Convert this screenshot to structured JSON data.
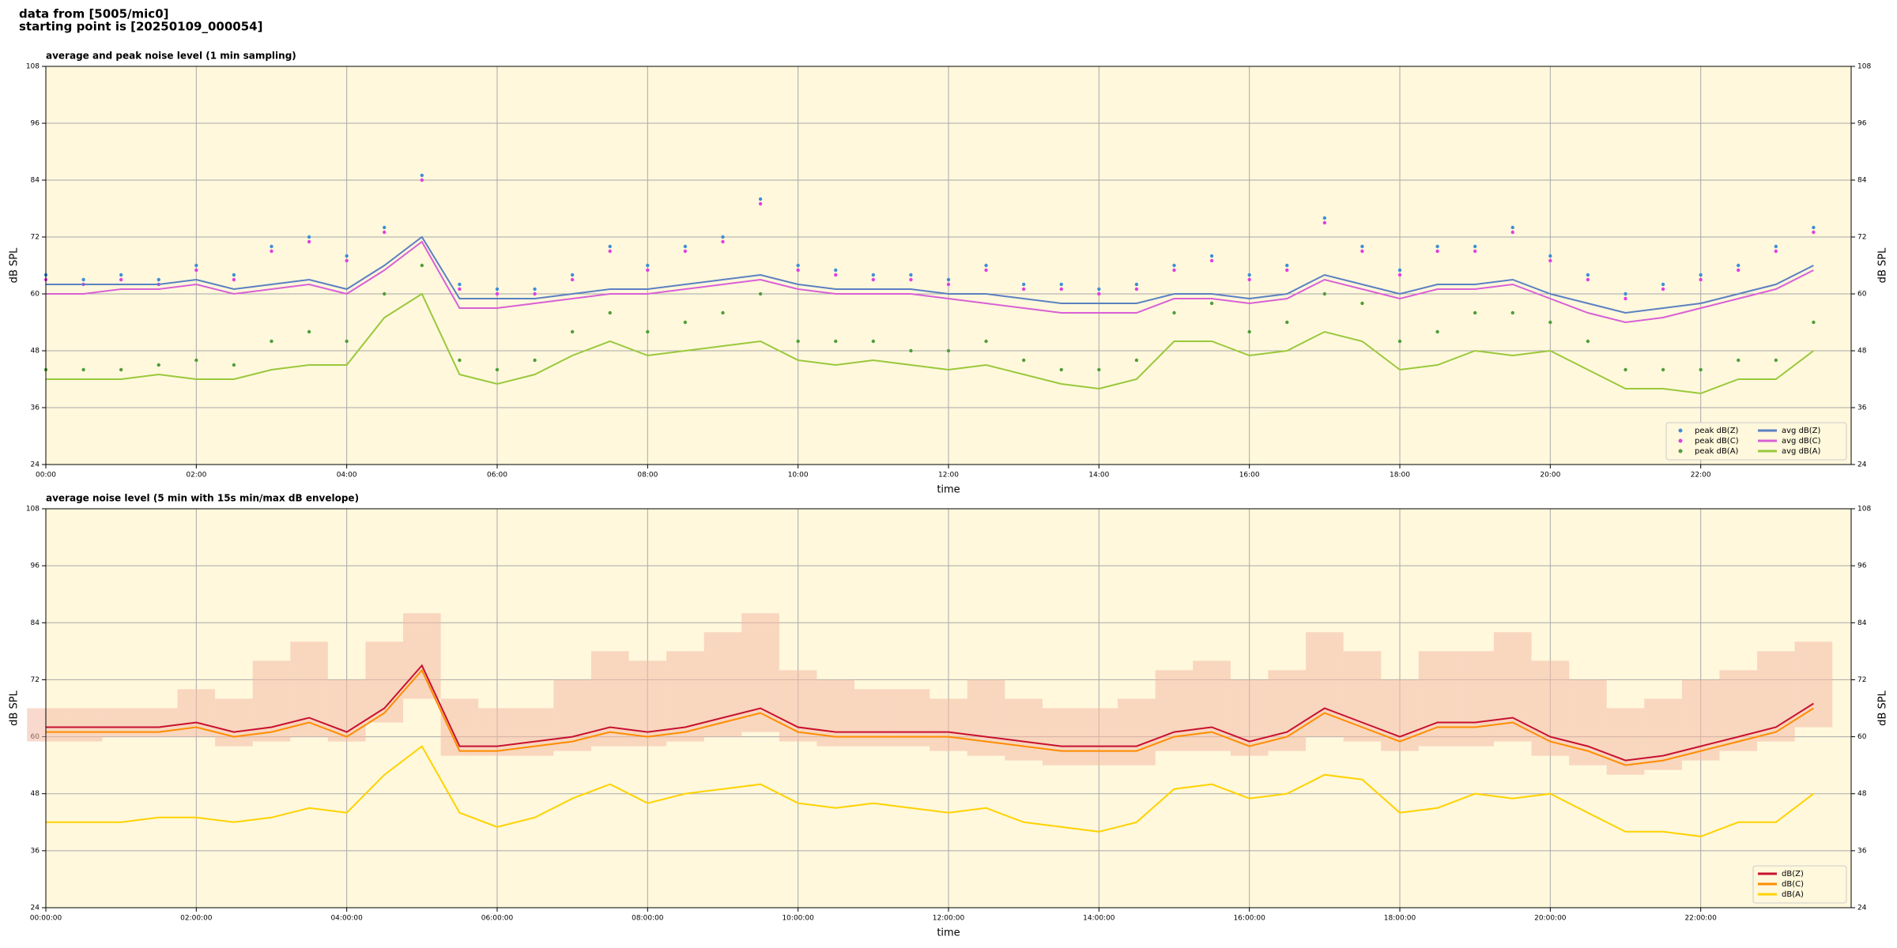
{
  "header": {
    "lines": [
      "data from [5005/mic0]",
      "starting point is [20250109_000054]"
    ]
  },
  "chart_data": [
    {
      "type": "line",
      "title": "average and peak noise level (1 min sampling)",
      "xlabel": "time",
      "ylabel": "dB SPL",
      "xlim": [
        0,
        24
      ],
      "ylim": [
        24,
        108
      ],
      "yticks": [
        24,
        36,
        48,
        60,
        72,
        84,
        96,
        108
      ],
      "xticks": [
        {
          "value": 0,
          "label": "00:00"
        },
        {
          "value": 2,
          "label": "02:00"
        },
        {
          "value": 4,
          "label": "04:00"
        },
        {
          "value": 6,
          "label": "06:00"
        },
        {
          "value": 8,
          "label": "08:00"
        },
        {
          "value": 10,
          "label": "10:00"
        },
        {
          "value": 12,
          "label": "12:00"
        },
        {
          "value": 14,
          "label": "14:00"
        },
        {
          "value": 16,
          "label": "16:00"
        },
        {
          "value": 18,
          "label": "18:00"
        },
        {
          "value": 20,
          "label": "20:00"
        },
        {
          "value": 22,
          "label": "22:00"
        }
      ],
      "grid": true,
      "background": "#fff8dc",
      "legend": {
        "loc": "lower right",
        "ncol": 2
      },
      "x": [
        0,
        0.5,
        1,
        1.5,
        2,
        2.5,
        3,
        3.5,
        4,
        4.5,
        5,
        5.5,
        6,
        6.5,
        7,
        7.5,
        8,
        8.5,
        9,
        9.5,
        10,
        10.5,
        11,
        11.5,
        12,
        12.5,
        13,
        13.5,
        14,
        14.5,
        15,
        15.5,
        16,
        16.5,
        17,
        17.5,
        18,
        18.5,
        19,
        19.5,
        20,
        20.5,
        21,
        21.5,
        22,
        22.5,
        23,
        23.5
      ],
      "series": [
        {
          "name": "peak dB(Z)",
          "type": "scatter",
          "color": "#3d8fd6",
          "values": [
            64,
            63,
            64,
            63,
            66,
            64,
            70,
            72,
            68,
            74,
            85,
            62,
            61,
            61,
            64,
            70,
            66,
            70,
            72,
            80,
            66,
            65,
            64,
            64,
            63,
            66,
            62,
            62,
            61,
            62,
            66,
            68,
            64,
            66,
            76,
            70,
            65,
            70,
            70,
            74,
            68,
            64,
            60,
            62,
            64,
            66,
            70,
            74
          ]
        },
        {
          "name": "peak dB(C)",
          "type": "scatter",
          "color": "#e23ee2",
          "values": [
            63,
            62,
            63,
            62,
            65,
            63,
            69,
            71,
            67,
            73,
            84,
            61,
            60,
            60,
            63,
            69,
            65,
            69,
            71,
            79,
            65,
            64,
            63,
            63,
            62,
            65,
            61,
            61,
            60,
            61,
            65,
            67,
            63,
            65,
            75,
            69,
            64,
            69,
            69,
            73,
            67,
            63,
            59,
            61,
            63,
            65,
            69,
            73
          ]
        },
        {
          "name": "peak dB(A)",
          "type": "scatter",
          "color": "#4f9e3a",
          "values": [
            44,
            44,
            44,
            45,
            46,
            45,
            50,
            52,
            50,
            60,
            66,
            46,
            44,
            46,
            52,
            56,
            52,
            54,
            56,
            60,
            50,
            50,
            50,
            48,
            48,
            50,
            46,
            44,
            44,
            46,
            56,
            58,
            52,
            54,
            60,
            58,
            50,
            52,
            56,
            56,
            54,
            50,
            44,
            44,
            44,
            46,
            46,
            54
          ]
        },
        {
          "name": "avg dB(Z)",
          "type": "line",
          "color": "#5b80c2",
          "values": [
            62,
            62,
            62,
            62,
            63,
            61,
            62,
            63,
            61,
            66,
            72,
            59,
            59,
            59,
            60,
            61,
            61,
            62,
            63,
            64,
            62,
            61,
            61,
            61,
            60,
            60,
            59,
            58,
            58,
            58,
            60,
            60,
            59,
            60,
            64,
            62,
            60,
            62,
            62,
            63,
            60,
            58,
            56,
            57,
            58,
            60,
            62,
            66
          ]
        },
        {
          "name": "avg dB(C)",
          "type": "line",
          "color": "#d960d6",
          "values": [
            60,
            60,
            61,
            61,
            62,
            60,
            61,
            62,
            60,
            65,
            71,
            57,
            57,
            58,
            59,
            60,
            60,
            61,
            62,
            63,
            61,
            60,
            60,
            60,
            59,
            58,
            57,
            56,
            56,
            56,
            59,
            59,
            58,
            59,
            63,
            61,
            59,
            61,
            61,
            62,
            59,
            56,
            54,
            55,
            57,
            59,
            61,
            65
          ]
        },
        {
          "name": "avg dB(A)",
          "type": "line",
          "color": "#9ac83c",
          "values": [
            42,
            42,
            42,
            43,
            42,
            42,
            44,
            45,
            45,
            55,
            60,
            43,
            41,
            43,
            47,
            50,
            47,
            48,
            49,
            50,
            46,
            45,
            46,
            45,
            44,
            45,
            43,
            41,
            40,
            42,
            50,
            50,
            47,
            48,
            52,
            50,
            44,
            45,
            48,
            47,
            48,
            44,
            40,
            40,
            39,
            42,
            42,
            48
          ]
        }
      ]
    },
    {
      "type": "line",
      "title": "average noise level (5 min with 15s min/max dB envelope)",
      "xlabel": "time",
      "ylabel": "dB SPL",
      "xlim": [
        0,
        24
      ],
      "ylim": [
        24,
        108
      ],
      "yticks": [
        24,
        36,
        48,
        60,
        72,
        84,
        96,
        108
      ],
      "xticks": [
        {
          "value": 0,
          "label": "00:00:00"
        },
        {
          "value": 2,
          "label": "02:00:00"
        },
        {
          "value": 4,
          "label": "04:00:00"
        },
        {
          "value": 6,
          "label": "06:00:00"
        },
        {
          "value": 8,
          "label": "08:00:00"
        },
        {
          "value": 10,
          "label": "10:00:00"
        },
        {
          "value": 12,
          "label": "12:00:00"
        },
        {
          "value": 14,
          "label": "14:00:00"
        },
        {
          "value": 16,
          "label": "16:00:00"
        },
        {
          "value": 18,
          "label": "18:00:00"
        },
        {
          "value": 20,
          "label": "20:00:00"
        },
        {
          "value": 22,
          "label": "22:00:00"
        }
      ],
      "grid": true,
      "background": "#fff8dc",
      "legend": {
        "loc": "lower right",
        "ncol": 1
      },
      "x": [
        0,
        0.5,
        1,
        1.5,
        2,
        2.5,
        3,
        3.5,
        4,
        4.5,
        5,
        5.5,
        6,
        6.5,
        7,
        7.5,
        8,
        8.5,
        9,
        9.5,
        10,
        10.5,
        11,
        11.5,
        12,
        12.5,
        13,
        13.5,
        14,
        14.5,
        15,
        15.5,
        16,
        16.5,
        17,
        17.5,
        18,
        18.5,
        19,
        19.5,
        20,
        20.5,
        21,
        21.5,
        22,
        22.5,
        23,
        23.5
      ],
      "band": {
        "color": "#f4b9a6",
        "upper": [
          66,
          66,
          66,
          66,
          70,
          68,
          76,
          80,
          72,
          80,
          86,
          68,
          66,
          66,
          72,
          78,
          76,
          78,
          82,
          86,
          74,
          72,
          70,
          70,
          68,
          72,
          68,
          66,
          66,
          68,
          74,
          76,
          72,
          74,
          82,
          78,
          72,
          78,
          78,
          82,
          76,
          72,
          66,
          68,
          72,
          74,
          78,
          80
        ],
        "lower": [
          59,
          59,
          60,
          60,
          60,
          58,
          59,
          60,
          59,
          63,
          68,
          56,
          56,
          56,
          57,
          58,
          58,
          59,
          60,
          61,
          59,
          58,
          58,
          58,
          57,
          56,
          55,
          54,
          54,
          54,
          57,
          57,
          56,
          57,
          60,
          59,
          57,
          58,
          58,
          59,
          56,
          54,
          52,
          53,
          55,
          57,
          59,
          62
        ]
      },
      "series": [
        {
          "name": "dB(Z)",
          "type": "line",
          "color": "#c8102e",
          "values": [
            62,
            62,
            62,
            62,
            63,
            61,
            62,
            64,
            61,
            66,
            75,
            58,
            58,
            59,
            60,
            62,
            61,
            62,
            64,
            66,
            62,
            61,
            61,
            61,
            61,
            60,
            59,
            58,
            58,
            58,
            61,
            62,
            59,
            61,
            66,
            63,
            60,
            63,
            63,
            64,
            60,
            58,
            55,
            56,
            58,
            60,
            62,
            67
          ]
        },
        {
          "name": "dB(C)",
          "type": "line",
          "color": "#ff8c00",
          "values": [
            61,
            61,
            61,
            61,
            62,
            60,
            61,
            63,
            60,
            65,
            74,
            57,
            57,
            58,
            59,
            61,
            60,
            61,
            63,
            65,
            61,
            60,
            60,
            60,
            60,
            59,
            58,
            57,
            57,
            57,
            60,
            61,
            58,
            60,
            65,
            62,
            59,
            62,
            62,
            63,
            59,
            57,
            54,
            55,
            57,
            59,
            61,
            66
          ]
        },
        {
          "name": "dB(A)",
          "type": "line",
          "color": "#ffd200",
          "values": [
            42,
            42,
            42,
            43,
            43,
            42,
            43,
            45,
            44,
            52,
            58,
            44,
            41,
            43,
            47,
            50,
            46,
            48,
            49,
            50,
            46,
            45,
            46,
            45,
            44,
            45,
            42,
            41,
            40,
            42,
            49,
            50,
            47,
            48,
            52,
            51,
            44,
            45,
            48,
            47,
            48,
            44,
            40,
            40,
            39,
            42,
            42,
            48
          ]
        }
      ]
    }
  ]
}
